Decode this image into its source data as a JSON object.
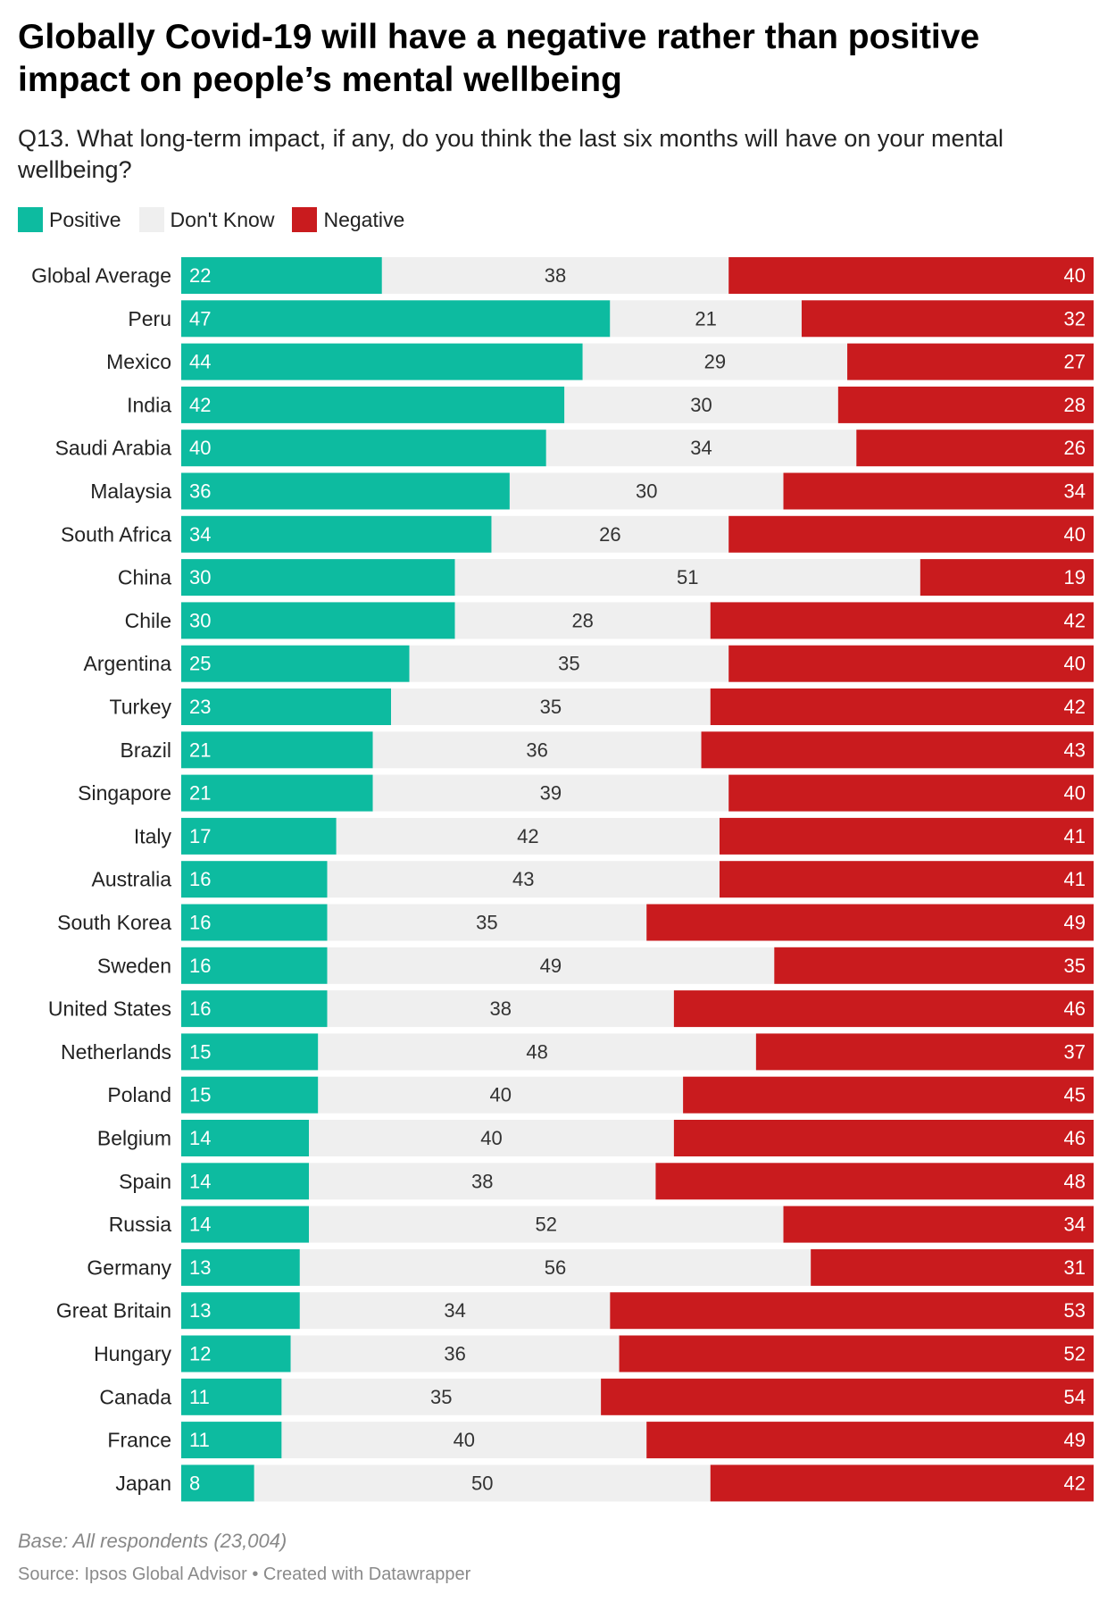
{
  "title": "Globally Covid-19 will have a negative rather than positive impact on people’s mental wellbeing",
  "subtitle": "Q13. What long-term impact, if any, do you think the last six months will have on your mental wellbeing?",
  "legend": [
    {
      "label": "Positive",
      "color": "#0dbba0"
    },
    {
      "label": "Don't Know",
      "color": "#efefef"
    },
    {
      "label": "Negative",
      "color": "#c91b1e"
    }
  ],
  "footer": {
    "note": "Base: All respondents (23,004)",
    "source": "Source: Ipsos Global Advisor • Created with Datawrapper"
  },
  "chart_data": {
    "type": "bar",
    "orientation": "horizontal",
    "stacked": true,
    "unit": "percent",
    "xlim": [
      0,
      100
    ],
    "categories": [
      "Global Average",
      "Peru",
      "Mexico",
      "India",
      "Saudi Arabia",
      "Malaysia",
      "South Africa",
      "China",
      "Chile",
      "Argentina",
      "Turkey",
      "Brazil",
      "Singapore",
      "Italy",
      "Australia",
      "South Korea",
      "Sweden",
      "United States",
      "Netherlands",
      "Poland",
      "Belgium",
      "Spain",
      "Russia",
      "Germany",
      "Great Britain",
      "Hungary",
      "Canada",
      "France",
      "Japan"
    ],
    "series": [
      {
        "name": "Positive",
        "color": "#0dbba0",
        "values": [
          22,
          47,
          44,
          42,
          40,
          36,
          34,
          30,
          30,
          25,
          23,
          21,
          21,
          17,
          16,
          16,
          16,
          16,
          15,
          15,
          14,
          14,
          14,
          13,
          13,
          12,
          11,
          11,
          8
        ]
      },
      {
        "name": "Don't Know",
        "color": "#efefef",
        "values": [
          38,
          21,
          29,
          30,
          34,
          30,
          26,
          51,
          28,
          35,
          35,
          36,
          39,
          42,
          43,
          35,
          49,
          38,
          48,
          40,
          40,
          38,
          52,
          56,
          34,
          36,
          35,
          40,
          50
        ]
      },
      {
        "name": "Negative",
        "color": "#c91b1e",
        "values": [
          40,
          32,
          27,
          28,
          26,
          34,
          40,
          19,
          42,
          40,
          42,
          43,
          40,
          41,
          41,
          49,
          35,
          46,
          37,
          45,
          46,
          48,
          34,
          31,
          53,
          52,
          54,
          49,
          42
        ]
      }
    ]
  }
}
